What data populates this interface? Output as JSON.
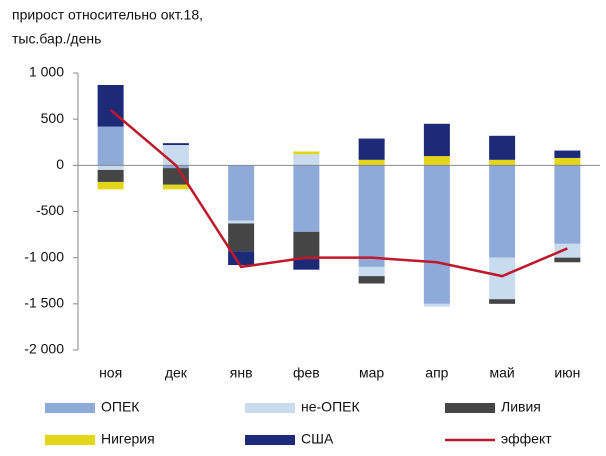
{
  "chart_data": {
    "type": "stacked_bar_line",
    "axis_label": [
      "прирост относительно окт.18,",
      "тыс.бар./день"
    ],
    "categories": [
      "ноя",
      "дек",
      "янв",
      "фев",
      "мар",
      "апр",
      "май",
      "июн"
    ],
    "series": [
      {
        "name": "ОПЕК",
        "color": "#8eaad9",
        "values": [
          420,
          -30,
          -600,
          -720,
          -1100,
          -1500,
          -1000,
          -850
        ]
      },
      {
        "name": "не-ОПЕК",
        "color": "#c9dbef",
        "values": [
          -50,
          220,
          -30,
          120,
          -100,
          -30,
          -450,
          -150
        ]
      },
      {
        "name": "Ливия",
        "color": "#454545",
        "values": [
          -130,
          -180,
          -300,
          -300,
          -80,
          0,
          -50,
          -50
        ]
      },
      {
        "name": "Нигерия",
        "color": "#e3d51a",
        "values": [
          -80,
          -50,
          0,
          30,
          60,
          100,
          60,
          80
        ]
      },
      {
        "name": "США",
        "color": "#1c2a78",
        "values": [
          450,
          20,
          -150,
          -110,
          230,
          350,
          260,
          80
        ]
      },
      {
        "name": "эффект",
        "color": "#c0182b",
        "type": "line",
        "values": [
          600,
          0,
          -1100,
          -1000,
          -1000,
          -1050,
          -1200,
          -900
        ]
      }
    ],
    "ylim": [
      -2000,
      1000
    ],
    "yticks": [
      {
        "value": -2000,
        "label": "-2 000"
      },
      {
        "value": -1500,
        "label": "-1 500"
      },
      {
        "value": -1000,
        "label": "-1 000"
      },
      -500,
      0,
      500,
      {
        "value": 1000,
        "label": "1 000"
      }
    ],
    "grid": false,
    "legend": "bottom"
  }
}
